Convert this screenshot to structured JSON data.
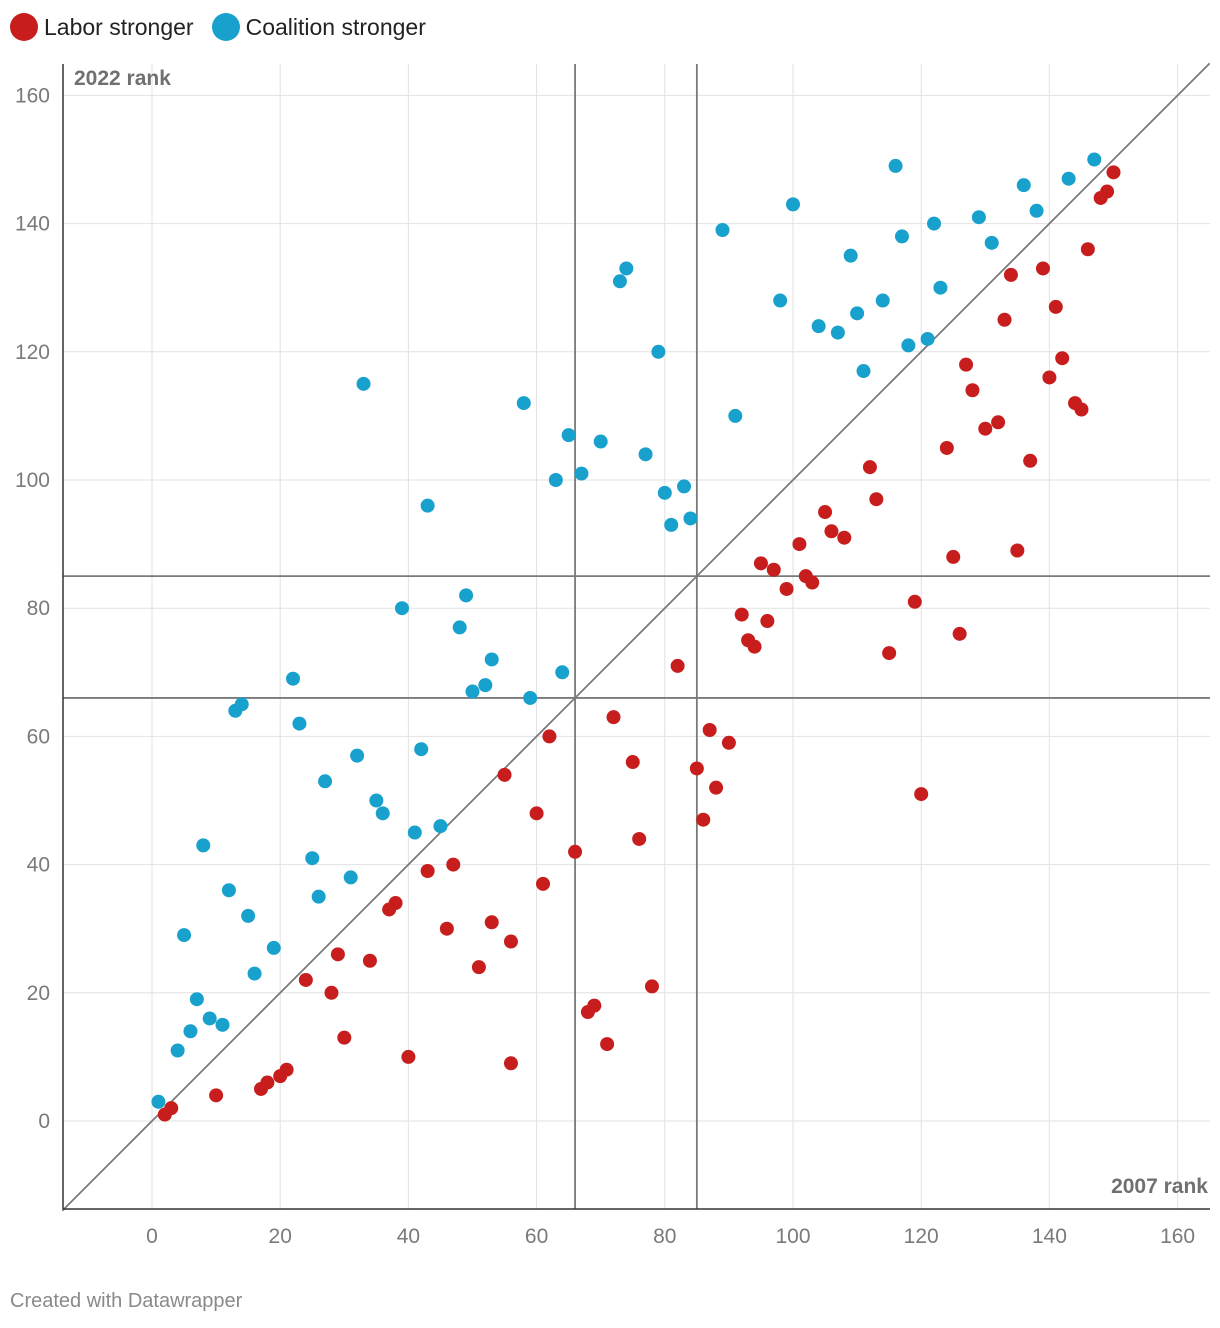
{
  "legend": [
    {
      "label": "Labor stronger",
      "color": "#c71e1d"
    },
    {
      "label": "Coalition stronger",
      "color": "#18a1cd"
    }
  ],
  "footer": "Created with Datawrapper",
  "chart_data": {
    "type": "scatter",
    "xlabel": "2007 rank",
    "ylabel": "2022 rank",
    "xlim": [
      -14,
      165
    ],
    "ylim": [
      -14,
      165
    ],
    "x_ticks": [
      0,
      20,
      40,
      60,
      80,
      100,
      120,
      140,
      160
    ],
    "y_ticks": [
      0,
      20,
      40,
      60,
      80,
      100,
      120,
      140,
      160
    ],
    "grid": true,
    "legend_position": "top-left",
    "reference_lines": {
      "diagonal": true,
      "vertical": [
        66,
        85
      ],
      "horizontal": [
        66,
        85
      ]
    },
    "series": [
      {
        "name": "Labor stronger",
        "color": "#c71e1d",
        "points": [
          [
            2,
            1
          ],
          [
            3,
            2
          ],
          [
            10,
            4
          ],
          [
            17,
            5
          ],
          [
            18,
            6
          ],
          [
            20,
            7
          ],
          [
            21,
            8
          ],
          [
            24,
            22
          ],
          [
            28,
            20
          ],
          [
            29,
            26
          ],
          [
            30,
            13
          ],
          [
            34,
            25
          ],
          [
            37,
            33
          ],
          [
            38,
            34
          ],
          [
            40,
            10
          ],
          [
            43,
            39
          ],
          [
            46,
            30
          ],
          [
            47,
            40
          ],
          [
            51,
            24
          ],
          [
            53,
            31
          ],
          [
            55,
            54
          ],
          [
            56,
            28
          ],
          [
            56,
            9
          ],
          [
            60,
            48
          ],
          [
            61,
            37
          ],
          [
            62,
            60
          ],
          [
            66,
            42
          ],
          [
            68,
            17
          ],
          [
            69,
            18
          ],
          [
            71,
            12
          ],
          [
            72,
            63
          ],
          [
            75,
            56
          ],
          [
            76,
            44
          ],
          [
            78,
            21
          ],
          [
            82,
            71
          ],
          [
            85,
            55
          ],
          [
            86,
            47
          ],
          [
            87,
            61
          ],
          [
            88,
            52
          ],
          [
            90,
            59
          ],
          [
            92,
            79
          ],
          [
            93,
            75
          ],
          [
            94,
            74
          ],
          [
            95,
            87
          ],
          [
            96,
            78
          ],
          [
            97,
            86
          ],
          [
            99,
            83
          ],
          [
            101,
            90
          ],
          [
            102,
            85
          ],
          [
            103,
            84
          ],
          [
            105,
            95
          ],
          [
            106,
            92
          ],
          [
            108,
            91
          ],
          [
            112,
            102
          ],
          [
            113,
            97
          ],
          [
            115,
            73
          ],
          [
            119,
            81
          ],
          [
            120,
            51
          ],
          [
            124,
            105
          ],
          [
            125,
            88
          ],
          [
            126,
            76
          ],
          [
            127,
            118
          ],
          [
            128,
            114
          ],
          [
            130,
            108
          ],
          [
            132,
            109
          ],
          [
            133,
            125
          ],
          [
            134,
            132
          ],
          [
            135,
            89
          ],
          [
            137,
            103
          ],
          [
            139,
            133
          ],
          [
            140,
            116
          ],
          [
            141,
            127
          ],
          [
            142,
            119
          ],
          [
            144,
            112
          ],
          [
            145,
            111
          ],
          [
            146,
            136
          ],
          [
            148,
            144
          ],
          [
            149,
            145
          ],
          [
            150,
            148
          ]
        ]
      },
      {
        "name": "Coalition stronger",
        "color": "#18a1cd",
        "points": [
          [
            1,
            3
          ],
          [
            4,
            11
          ],
          [
            5,
            29
          ],
          [
            6,
            14
          ],
          [
            7,
            19
          ],
          [
            8,
            43
          ],
          [
            9,
            16
          ],
          [
            11,
            15
          ],
          [
            12,
            36
          ],
          [
            13,
            64
          ],
          [
            14,
            65
          ],
          [
            15,
            32
          ],
          [
            16,
            23
          ],
          [
            19,
            27
          ],
          [
            22,
            69
          ],
          [
            23,
            62
          ],
          [
            25,
            41
          ],
          [
            26,
            35
          ],
          [
            27,
            53
          ],
          [
            31,
            38
          ],
          [
            32,
            57
          ],
          [
            33,
            115
          ],
          [
            35,
            50
          ],
          [
            36,
            48
          ],
          [
            39,
            80
          ],
          [
            41,
            45
          ],
          [
            42,
            58
          ],
          [
            43,
            96
          ],
          [
            45,
            46
          ],
          [
            48,
            77
          ],
          [
            49,
            82
          ],
          [
            50,
            67
          ],
          [
            52,
            68
          ],
          [
            53,
            72
          ],
          [
            58,
            112
          ],
          [
            59,
            66
          ],
          [
            63,
            100
          ],
          [
            64,
            70
          ],
          [
            65,
            107
          ],
          [
            67,
            101
          ],
          [
            70,
            106
          ],
          [
            73,
            131
          ],
          [
            74,
            133
          ],
          [
            77,
            104
          ],
          [
            79,
            120
          ],
          [
            80,
            98
          ],
          [
            81,
            93
          ],
          [
            83,
            99
          ],
          [
            84,
            94
          ],
          [
            89,
            139
          ],
          [
            91,
            110
          ],
          [
            98,
            128
          ],
          [
            100,
            143
          ],
          [
            104,
            124
          ],
          [
            107,
            123
          ],
          [
            109,
            135
          ],
          [
            110,
            126
          ],
          [
            111,
            117
          ],
          [
            114,
            128
          ],
          [
            116,
            149
          ],
          [
            117,
            138
          ],
          [
            118,
            121
          ],
          [
            121,
            122
          ],
          [
            122,
            140
          ],
          [
            123,
            130
          ],
          [
            129,
            141
          ],
          [
            131,
            137
          ],
          [
            136,
            146
          ],
          [
            138,
            142
          ],
          [
            143,
            147
          ],
          [
            147,
            150
          ]
        ]
      }
    ]
  }
}
